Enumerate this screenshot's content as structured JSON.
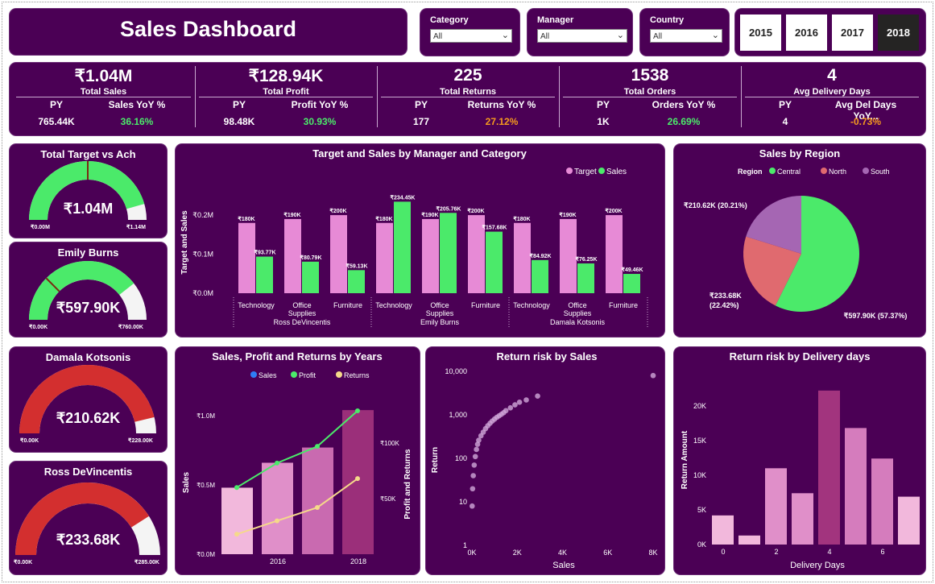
{
  "title": "Sales Dashboard",
  "slicers": [
    {
      "label": "Category",
      "value": "All"
    },
    {
      "label": "Manager",
      "value": "All"
    },
    {
      "label": "Country",
      "value": "All"
    }
  ],
  "years": [
    {
      "label": "2015",
      "active": false
    },
    {
      "label": "2016",
      "active": false
    },
    {
      "label": "2017",
      "active": false
    },
    {
      "label": "2018",
      "active": true
    }
  ],
  "kpis": [
    {
      "value": "₹1.04M",
      "name": "Total Sales",
      "h1": "PY",
      "h2": "Sales YoY %",
      "v1": "765.44K",
      "v2": "36.16%",
      "v2_color": "#4bea6a"
    },
    {
      "value": "₹128.94K",
      "name": "Total Profit",
      "h1": "PY",
      "h2": "Profit YoY %",
      "v1": "98.48K",
      "v2": "30.93%",
      "v2_color": "#4bea6a"
    },
    {
      "value": "225",
      "name": "Total Returns",
      "h1": "PY",
      "h2": "Returns YoY %",
      "v1": "177",
      "v2": "27.12%",
      "v2_color": "#f59a1e"
    },
    {
      "value": "1538",
      "name": "Total Orders",
      "h1": "PY",
      "h2": "Orders YoY %",
      "v1": "1K",
      "v2": "26.69%",
      "v2_color": "#4bea6a"
    },
    {
      "value": "4",
      "name": "Avg Delivery Days",
      "h1": "PY",
      "h2": "Avg Del Days YoY...",
      "v1": "4",
      "v2": "-0.73%",
      "v2_color": "#f59a1e"
    }
  ],
  "gauges": [
    {
      "title": "Total Target vs Ach",
      "value": "₹1.04M",
      "min": "₹0.00M",
      "max": "₹1.14M",
      "fraction": 0.912,
      "target_fraction": 0.5,
      "color": "#4bea6a"
    },
    {
      "title": "Emily Burns",
      "value": "₹597.90K",
      "min": "₹0.00K",
      "max": "₹760.00K",
      "fraction": 0.787,
      "target_fraction": 0.25,
      "color": "#4bea6a"
    },
    {
      "title": "Damala Kotsonis",
      "value": "₹210.62K",
      "min": "₹0.00K",
      "max": "₹228.00K",
      "fraction": 0.924,
      "target_fraction": null,
      "color": "#d32f2f"
    },
    {
      "title": "Ross DeVincentis",
      "value": "₹233.68K",
      "min": "₹0.00K",
      "max": "₹285.00K",
      "fraction": 0.82,
      "target_fraction": null,
      "color": "#d32f2f"
    }
  ],
  "chart_data": [
    {
      "type": "bar",
      "title": "Target and Sales by Manager and Category",
      "ylabel": "Target and Sales",
      "ylim": [
        0,
        260
      ],
      "yticks": [
        "₹0.0M",
        "₹0.1M",
        "₹0.2M"
      ],
      "legend_position": "top",
      "categories": [
        "Technology",
        "Office Supplies",
        "Furniture",
        "Technology",
        "Office Supplies",
        "Furniture",
        "Technology",
        "Office Supplies",
        "Furniture"
      ],
      "category_lines": [
        [
          "Technology"
        ],
        [
          "Office",
          "Supplies"
        ],
        [
          "Furniture"
        ],
        [
          "Technology"
        ],
        [
          "Office",
          "Supplies"
        ],
        [
          "Furniture"
        ],
        [
          "Technology"
        ],
        [
          "Office",
          "Supplies"
        ],
        [
          "Furniture"
        ]
      ],
      "groups": [
        "Ross DeVincentis",
        "Emily Burns",
        "Damala Kotsonis"
      ],
      "series": [
        {
          "name": "Target",
          "color": "#e78ad6",
          "values": [
            180,
            190,
            200,
            180,
            190,
            200,
            180,
            190,
            200
          ],
          "labels": [
            "₹180K",
            "₹190K",
            "₹200K",
            "₹180K",
            "₹190K",
            "₹200K",
            "₹180K",
            "₹190K",
            "₹200K"
          ]
        },
        {
          "name": "Sales",
          "color": "#4bea6a",
          "values": [
            93.77,
            80.79,
            59.13,
            234.45,
            205.76,
            157.68,
            84.92,
            76.25,
            49.46
          ],
          "labels": [
            "₹93.77K",
            "₹80.79K",
            "₹59.13K",
            "₹234.45K",
            "₹205.76K",
            "₹157.68K",
            "₹84.92K",
            "₹76.25K",
            "₹49.46K"
          ]
        }
      ]
    },
    {
      "type": "pie",
      "title": "Sales by Region",
      "legend_title": "Region",
      "legend_position": "top",
      "slices": [
        {
          "name": "Central",
          "value": 597.9,
          "color": "#4bea6a",
          "label_line1": "₹597.90K (57.37%)",
          "label_line2": ""
        },
        {
          "name": "North",
          "value": 233.68,
          "color": "#e06a6f",
          "label_line1": "₹233.68K",
          "label_line2": "(22.42%)"
        },
        {
          "name": "South",
          "value": 210.62,
          "color": "#a566b3",
          "label_line1": "₹210.62K (20.21%)",
          "label_line2": ""
        }
      ]
    },
    {
      "type": "bar",
      "title": "Sales, Profit and Returns by Years",
      "ylabel": "Sales",
      "y2label": "Profit and Returns",
      "legend_position": "top",
      "x": [
        "2015",
        "2016",
        "2017",
        "2018"
      ],
      "xticks": [
        "2016",
        "2018"
      ],
      "yticks_left": [
        "₹0.0M",
        "₹0.5M",
        "₹1.0M"
      ],
      "yticks_right": [
        "₹50K",
        "₹100K"
      ],
      "bar_colors": [
        "#f2b8dc",
        "#e08fc9",
        "#c96ab0",
        "#9b2f7a"
      ],
      "series": [
        {
          "name": "Sales",
          "color": "#2f7df6",
          "type": "bar",
          "values": [
            0.48,
            0.66,
            0.77,
            1.04
          ]
        },
        {
          "name": "Profit",
          "color": "#4bea6a",
          "type": "line",
          "values": [
            60,
            82,
            97,
            129
          ]
        },
        {
          "name": "Returns",
          "color": "#f5d98a",
          "type": "line",
          "values": [
            18,
            30,
            42,
            68
          ]
        }
      ]
    },
    {
      "type": "scatter",
      "title": "Return risk by Sales",
      "xlabel": "Sales",
      "ylabel": "Return",
      "xlim": [
        0,
        8000
      ],
      "xticks": [
        "0K",
        "2K",
        "4K",
        "6K",
        "8K"
      ],
      "yscale": "log",
      "ylim": [
        1,
        10000
      ],
      "yticks": [
        "1",
        "10",
        "100",
        "1,000",
        "10,000"
      ],
      "points": [
        [
          10,
          8
        ],
        [
          30,
          20
        ],
        [
          60,
          40
        ],
        [
          100,
          70
        ],
        [
          150,
          110
        ],
        [
          200,
          160
        ],
        [
          250,
          210
        ],
        [
          300,
          260
        ],
        [
          400,
          330
        ],
        [
          500,
          400
        ],
        [
          600,
          480
        ],
        [
          700,
          560
        ],
        [
          800,
          640
        ],
        [
          900,
          720
        ],
        [
          1000,
          800
        ],
        [
          1100,
          880
        ],
        [
          1200,
          950
        ],
        [
          1300,
          1030
        ],
        [
          1400,
          1120
        ],
        [
          1500,
          1250
        ],
        [
          1700,
          1450
        ],
        [
          1900,
          1700
        ],
        [
          2100,
          1950
        ],
        [
          2400,
          2200
        ],
        [
          2900,
          2700
        ],
        [
          8000,
          8000
        ]
      ]
    },
    {
      "type": "bar",
      "title": "Return risk by Delivery days",
      "xlabel": "Delivery Days",
      "ylabel": "Return Amount",
      "ylim": [
        0,
        23000
      ],
      "yticks": [
        "0K",
        "5K",
        "10K",
        "15K",
        "20K"
      ],
      "xticks": [
        "0",
        "2",
        "4",
        "6"
      ],
      "categories": [
        "0",
        "1",
        "2",
        "3",
        "4",
        "5",
        "6",
        "7"
      ],
      "values": [
        4200,
        1300,
        11000,
        7400,
        22200,
        16800,
        12400,
        6900
      ],
      "colors": [
        "#f2b8dc",
        "#f2b8dc",
        "#e08fc9",
        "#e08fc9",
        "#a2347e",
        "#d57cbd",
        "#d57cbd",
        "#f2b8dc"
      ]
    }
  ]
}
